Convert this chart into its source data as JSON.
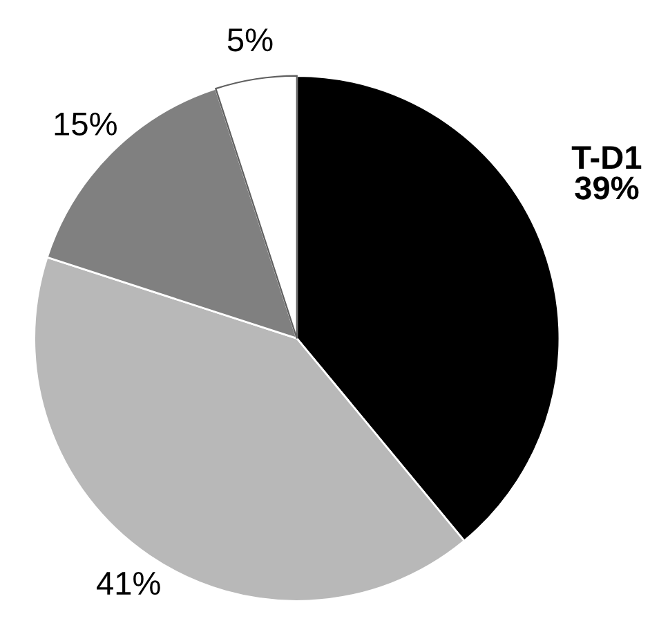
{
  "chart_data": {
    "type": "pie",
    "categories": [
      "T-D1",
      null,
      null,
      null
    ],
    "values": [
      39,
      41,
      15,
      5
    ],
    "colors": [
      "#000000",
      "#b8b8b8",
      "#808080",
      "#ffffff"
    ],
    "value_labels": [
      "39%",
      "41%",
      "15%",
      "5%"
    ]
  }
}
